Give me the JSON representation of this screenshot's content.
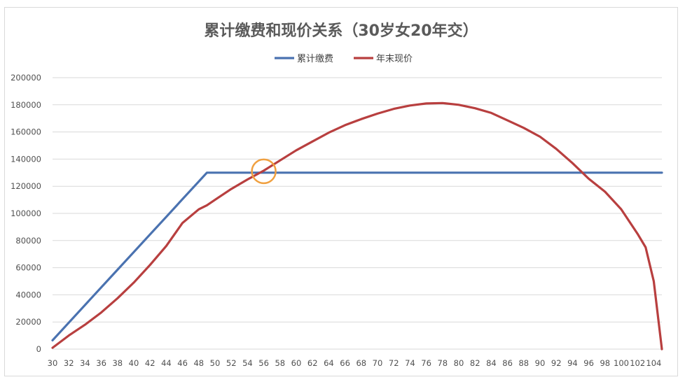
{
  "chart_data": {
    "type": "line",
    "title": "累计缴费和现价关系（30岁女20年交）",
    "xlabel": "",
    "ylabel": "",
    "x": [
      30,
      32,
      34,
      36,
      38,
      40,
      42,
      44,
      46,
      48,
      49,
      50,
      52,
      54,
      56,
      58,
      60,
      62,
      64,
      66,
      68,
      70,
      72,
      74,
      76,
      78,
      80,
      82,
      84,
      86,
      88,
      90,
      92,
      94,
      96,
      98,
      100,
      102,
      103,
      104,
      105
    ],
    "x_ticks": [
      30,
      32,
      34,
      36,
      38,
      40,
      42,
      44,
      46,
      48,
      50,
      52,
      54,
      56,
      58,
      60,
      62,
      64,
      66,
      68,
      70,
      72,
      74,
      76,
      78,
      80,
      82,
      84,
      86,
      88,
      90,
      92,
      94,
      96,
      98,
      100,
      102,
      104
    ],
    "ylim": [
      0,
      200000
    ],
    "y_ticks": [
      0,
      20000,
      40000,
      60000,
      80000,
      100000,
      120000,
      140000,
      160000,
      180000,
      200000
    ],
    "grid": true,
    "legend_position": "top-center",
    "series": [
      {
        "name": "累计缴费",
        "color": "#4a72b0",
        "values": [
          6500,
          19500,
          32500,
          45500,
          58500,
          71500,
          84500,
          97500,
          110500,
          123500,
          130000,
          130000,
          130000,
          130000,
          130000,
          130000,
          130000,
          130000,
          130000,
          130000,
          130000,
          130000,
          130000,
          130000,
          130000,
          130000,
          130000,
          130000,
          130000,
          130000,
          130000,
          130000,
          130000,
          130000,
          130000,
          130000,
          130000,
          130000,
          130000,
          130000,
          130000
        ]
      },
      {
        "name": "年末现价",
        "color": "#b83f3f",
        "values": [
          1000,
          10000,
          18000,
          27000,
          37500,
          49000,
          62000,
          76000,
          93000,
          103000,
          106000,
          110000,
          118000,
          125000,
          131500,
          139000,
          146500,
          153000,
          159500,
          165000,
          169500,
          173500,
          177000,
          179500,
          181000,
          181300,
          180000,
          177500,
          174000,
          168500,
          163000,
          156500,
          147500,
          137000,
          125500,
          116000,
          103000,
          85000,
          75000,
          50000,
          0
        ]
      }
    ],
    "annotations": [
      {
        "type": "circle",
        "x": 56,
        "y": 131000,
        "color": "#f0a040"
      }
    ]
  }
}
